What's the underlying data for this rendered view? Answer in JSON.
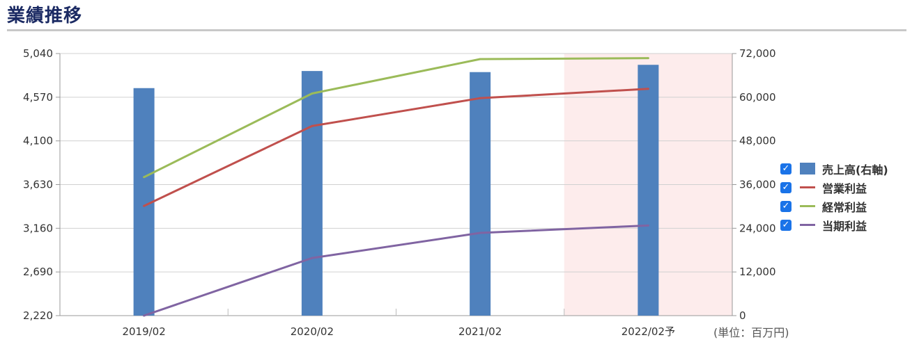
{
  "title": "業績推移",
  "unit_note": "(単位：百万円)",
  "chart_data": {
    "type": "bar+line",
    "categories": [
      "2019/02",
      "2020/02",
      "2021/02",
      "2022/02予"
    ],
    "forecast_index": 3,
    "left_axis": {
      "ticks": [
        "5,040",
        "4,570",
        "4,100",
        "3,630",
        "3,160",
        "2,690",
        "2,220"
      ],
      "ylim": [
        2220,
        5040
      ]
    },
    "right_axis": {
      "ticks": [
        "72,000",
        "60,000",
        "48,000",
        "36,000",
        "24,000",
        "12,000",
        "0"
      ],
      "ylim": [
        0,
        72000
      ]
    },
    "series": [
      {
        "name": "売上高(右軸)",
        "type": "bar",
        "axis": "right",
        "color": "#4f81bd",
        "values": [
          62500,
          67200,
          66900,
          68900
        ]
      },
      {
        "name": "営業利益",
        "type": "line",
        "axis": "left",
        "color": "#c0504d",
        "values": [
          3400,
          4260,
          4560,
          4660
        ]
      },
      {
        "name": "経常利益",
        "type": "line",
        "axis": "left",
        "color": "#9bbb59",
        "values": [
          3710,
          4610,
          4980,
          4990
        ]
      },
      {
        "name": "当期利益",
        "type": "line",
        "axis": "left",
        "color": "#8064a2",
        "values": [
          2220,
          2840,
          3110,
          3190
        ]
      }
    ],
    "grid": true,
    "legend": "right",
    "forecast_band_color": "#fdecec"
  }
}
